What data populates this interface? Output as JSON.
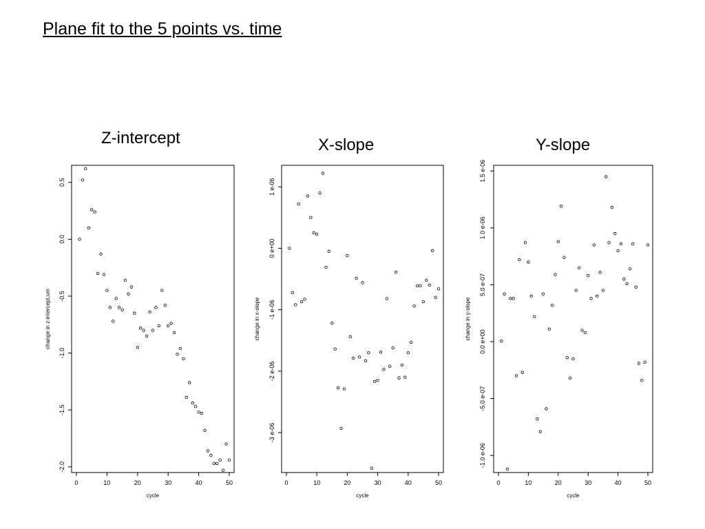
{
  "slide_title": "Plane fit to the 5 points vs. time",
  "chart_data": [
    {
      "type": "scatter",
      "title": "Z-intercept",
      "xlabel": "cycle",
      "ylabel": "change in z-intercept,um",
      "xlim": [
        0,
        50
      ],
      "ylim": [
        -2.05,
        0.65
      ],
      "xticks": [
        0,
        10,
        20,
        30,
        40,
        50
      ],
      "xtick_labels": [
        "0",
        "10",
        "20",
        "30",
        "40",
        "50"
      ],
      "yticks": [
        0.5,
        0.0,
        -0.5,
        -1.0,
        -1.5,
        -2.0
      ],
      "ytick_labels": [
        "0.5",
        "0.0",
        "-0.5",
        "-1.0",
        "-1.5",
        "-2.0"
      ],
      "x": [
        1,
        2,
        3,
        4,
        5,
        6,
        7,
        8,
        9,
        10,
        11,
        12,
        13,
        14,
        15,
        16,
        17,
        18,
        19,
        20,
        21,
        22,
        23,
        24,
        25,
        26,
        27,
        28,
        29,
        30,
        31,
        32,
        33,
        34,
        35,
        36,
        37,
        38,
        39,
        40,
        41,
        42,
        43,
        44,
        45,
        46,
        47,
        48,
        49,
        50
      ],
      "y": [
        0.0,
        0.52,
        0.62,
        0.1,
        0.26,
        0.24,
        -0.3,
        -0.13,
        -0.31,
        -0.45,
        -0.6,
        -0.72,
        -0.52,
        -0.6,
        -0.62,
        -0.36,
        -0.48,
        -0.42,
        -0.65,
        -0.95,
        -0.78,
        -0.8,
        -0.85,
        -0.64,
        -0.8,
        -0.6,
        -0.76,
        -0.45,
        -0.58,
        -0.76,
        -0.74,
        -0.82,
        -1.01,
        -0.96,
        -1.05,
        -1.39,
        -1.26,
        -1.44,
        -1.47,
        -1.52,
        -1.53,
        -1.68,
        -1.86,
        -1.9,
        -1.97,
        -1.97,
        -1.94,
        -2.03,
        -1.8,
        -1.94
      ]
    },
    {
      "type": "scatter",
      "title": "X-slope",
      "xlabel": "cycle",
      "ylabel": "change in x-slope",
      "xlim": [
        0,
        50
      ],
      "ylim": [
        -3.65e-06,
        1.35e-06
      ],
      "xticks": [
        0,
        10,
        20,
        30,
        40,
        50
      ],
      "xtick_labels": [
        "0",
        "10",
        "20",
        "30",
        "40",
        "50"
      ],
      "yticks": [
        1e-06,
        0,
        -1e-06,
        -2e-06,
        -3e-06
      ],
      "ytick_labels": [
        "1 e-06",
        "0 e+00",
        "-1 e-06",
        "-2 e-06",
        "-3 e-06"
      ],
      "x": [
        1,
        2,
        3,
        4,
        5,
        6,
        7,
        8,
        9,
        10,
        11,
        12,
        13,
        14,
        15,
        16,
        17,
        18,
        19,
        20,
        21,
        22,
        23,
        24,
        25,
        26,
        27,
        28,
        29,
        30,
        31,
        32,
        33,
        34,
        35,
        36,
        37,
        38,
        39,
        40,
        41,
        42,
        43,
        44,
        45,
        46,
        47,
        48,
        49,
        50
      ],
      "y": [
        0.0,
        -7.2e-07,
        -9.2e-07,
        7.2e-07,
        -8.7e-07,
        -8.3e-07,
        8.5e-07,
        5e-07,
        2.5e-07,
        2.3e-07,
        9e-07,
        1.22e-06,
        -3.1e-07,
        -5e-08,
        -1.22e-06,
        -1.64e-06,
        -2.27e-06,
        -2.93e-06,
        -2.29e-06,
        -1.2e-07,
        -1.44e-06,
        -1.79e-06,
        -4.9e-07,
        -1.77e-06,
        -5.6e-07,
        -1.83e-06,
        -1.7e-06,
        -3.58e-06,
        -2.17e-06,
        -2.15e-06,
        -1.69e-06,
        -1.97e-06,
        -8.2e-07,
        -1.92e-06,
        -1.62e-06,
        -3.9e-07,
        -2.11e-06,
        -1.9e-06,
        -2.1e-06,
        -1.7e-06,
        -1.53e-06,
        -9.4e-07,
        -6.1e-07,
        -6.1e-07,
        -8.7e-07,
        -5.2e-07,
        -6e-07,
        -4e-08,
        -8e-07,
        -6.6e-07
      ]
    },
    {
      "type": "scatter",
      "title": "Y-slope",
      "xlabel": "cycle",
      "ylabel": "change in y-slope",
      "xlim": [
        0,
        50
      ],
      "ylim": [
        -1.15e-06,
        1.55e-06
      ],
      "xticks": [
        0,
        10,
        20,
        30,
        40,
        50
      ],
      "xtick_labels": [
        "0",
        "10",
        "20",
        "30",
        "40",
        "50"
      ],
      "yticks": [
        1.5e-06,
        1e-06,
        5e-07,
        0,
        -5e-07,
        -1e-06
      ],
      "ytick_labels": [
        "1.5 e-06",
        "1.0 e-06",
        "5.0 e-07",
        "0.0 e+00",
        "-5.0 e-07",
        "-1.0 e-06"
      ],
      "x": [
        1,
        2,
        3,
        4,
        5,
        6,
        7,
        8,
        9,
        10,
        11,
        12,
        13,
        14,
        15,
        16,
        17,
        18,
        19,
        20,
        21,
        22,
        23,
        24,
        25,
        26,
        27,
        28,
        29,
        30,
        31,
        32,
        33,
        34,
        35,
        36,
        37,
        38,
        39,
        40,
        41,
        42,
        43,
        44,
        45,
        46,
        47,
        48,
        49,
        50
      ],
      "y": [
        5e-09,
        4.2e-07,
        -1.12e-06,
        3.8e-07,
        3.8e-07,
        -3e-07,
        7.2e-07,
        -2.7e-07,
        8.7e-07,
        7e-07,
        4e-07,
        2.2e-07,
        -6.8e-07,
        -7.9e-07,
        4.2e-07,
        -5.9e-07,
        1.1e-07,
        3.2e-07,
        5.9e-07,
        8.8e-07,
        1.19e-06,
        7.4e-07,
        -1.4e-07,
        -3.2e-07,
        -1.5e-07,
        4.5e-07,
        6.5e-07,
        1e-07,
        8e-08,
        5.8e-07,
        3.8e-07,
        8.5e-07,
        4e-07,
        6.1e-07,
        4.5e-07,
        1.45e-06,
        8.7e-07,
        1.18e-06,
        9.5e-07,
        8e-07,
        8.6e-07,
        5.5e-07,
        5.1e-07,
        6.4e-07,
        8.6e-07,
        4.8e-07,
        -1.9e-07,
        -3.4e-07,
        -1.8e-07,
        8.5e-07
      ]
    }
  ]
}
